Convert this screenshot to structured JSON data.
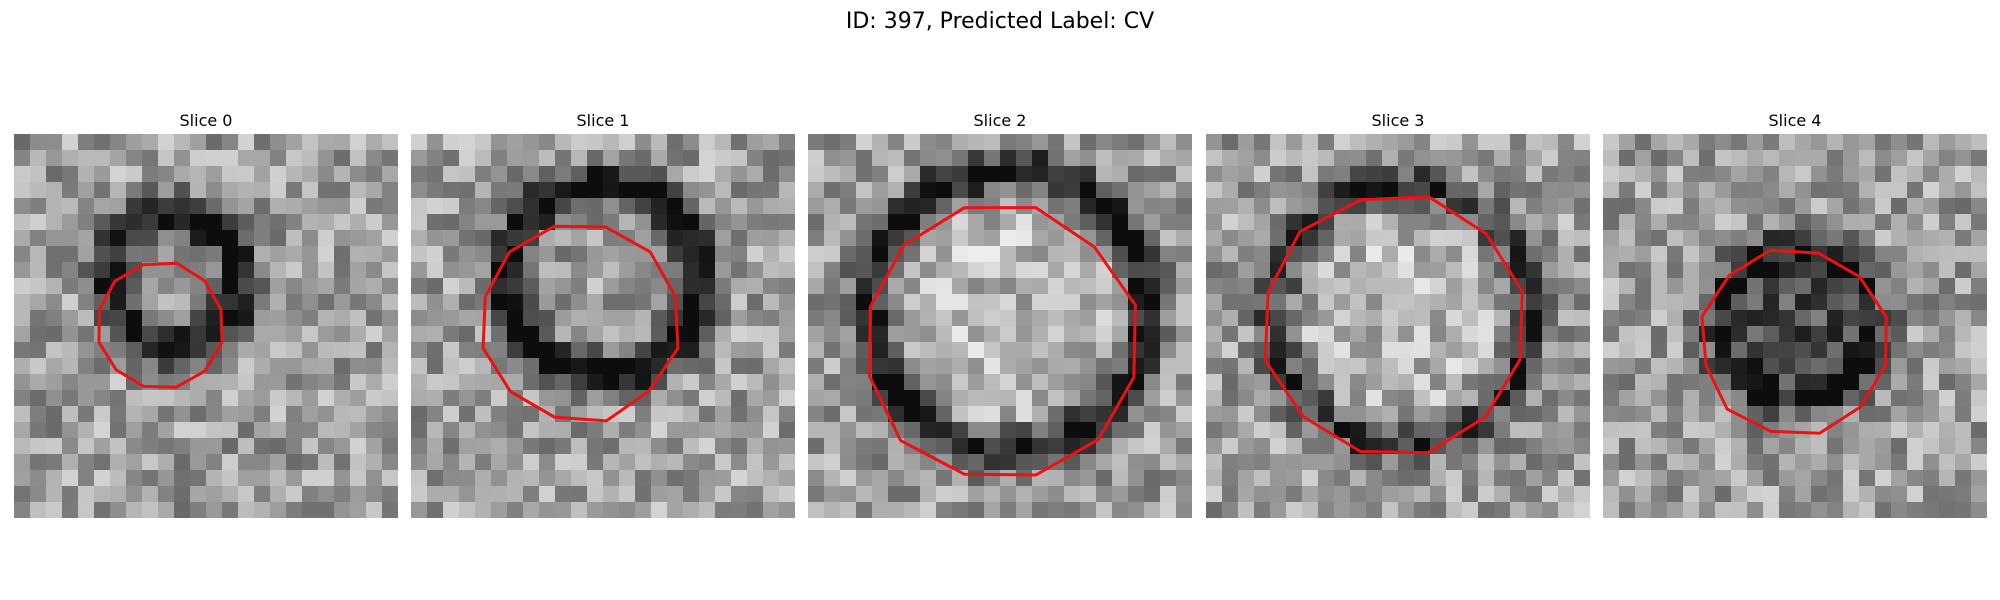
{
  "figure": {
    "title": "ID: 397, Predicted Label: CV"
  },
  "contour_color": "#ee1111",
  "panels": [
    {
      "title": "Slice 0"
    },
    {
      "title": "Slice 1"
    },
    {
      "title": "Slice 2"
    },
    {
      "title": "Slice 3"
    },
    {
      "title": "Slice 4"
    }
  ]
}
